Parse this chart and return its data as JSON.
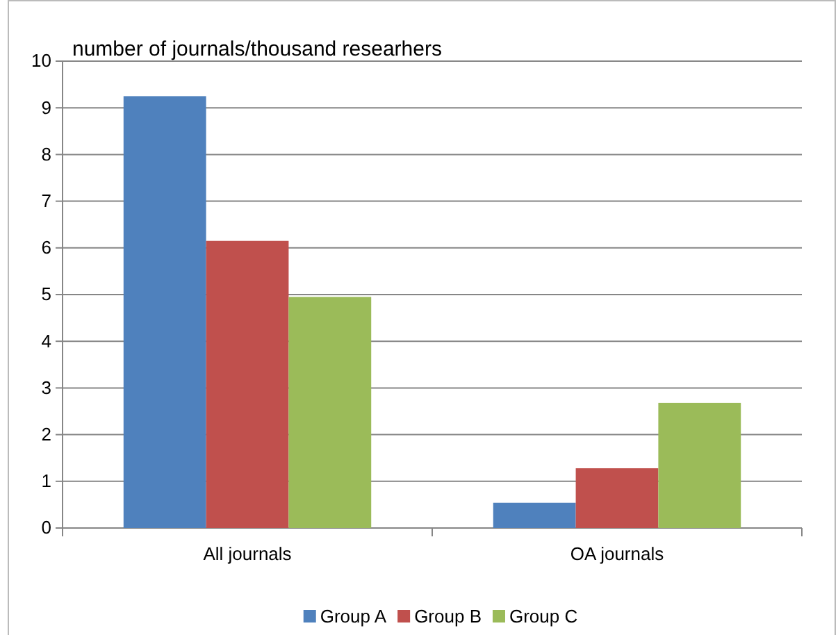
{
  "chart_data": {
    "type": "bar",
    "title": "number of journals/thousand researhers",
    "categories": [
      "All journals",
      "OA journals"
    ],
    "series": [
      {
        "name": "Group A",
        "color": "#4f81bd",
        "values": [
          9.25,
          0.54
        ]
      },
      {
        "name": "Group B",
        "color": "#c0504d",
        "values": [
          6.15,
          1.28
        ]
      },
      {
        "name": "Group C",
        "color": "#9bbb59",
        "values": [
          4.95,
          2.68
        ]
      }
    ],
    "ylim": [
      0,
      10
    ],
    "yticks": [
      0,
      1,
      2,
      3,
      4,
      5,
      6,
      7,
      8,
      9,
      10
    ],
    "grid": "y",
    "legend": "bottom"
  }
}
